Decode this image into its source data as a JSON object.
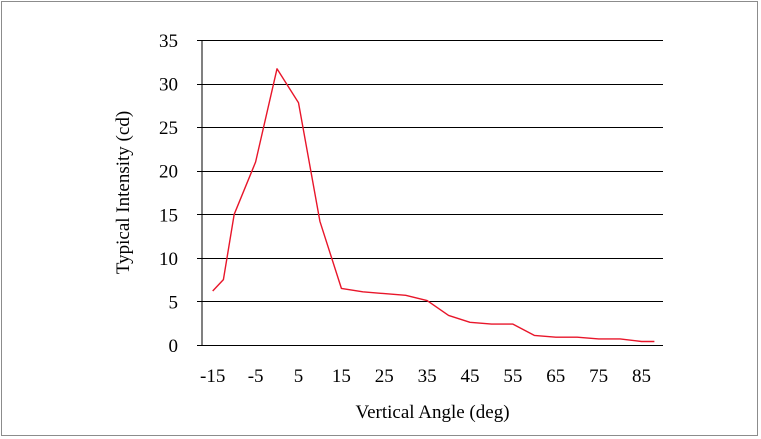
{
  "chart_data": {
    "type": "line",
    "title": "",
    "xlabel": "Vertical Angle (deg)",
    "ylabel": "Typical Intensity (cd)",
    "xlim": [
      -17.5,
      90
    ],
    "ylim": [
      0,
      35
    ],
    "x_ticks": [
      -15,
      -5,
      5,
      15,
      25,
      35,
      45,
      55,
      65,
      75,
      85
    ],
    "x_tick_labels": [
      "-15",
      "-5",
      "5",
      "15",
      "25",
      "35",
      "45",
      "55",
      "65",
      "75",
      "85"
    ],
    "y_ticks": [
      0,
      5,
      10,
      15,
      20,
      25,
      30,
      35
    ],
    "y_tick_labels": [
      "0",
      "5",
      "10",
      "15",
      "20",
      "25",
      "30",
      "35"
    ],
    "grid": "horizontal",
    "legend": "none",
    "series": [
      {
        "color": "#e8162a",
        "x": [
          -15,
          -12.5,
          -10,
          -5,
          0,
          5,
          10,
          15,
          20,
          25,
          30,
          35,
          40,
          45,
          50,
          55,
          60,
          65,
          70,
          75,
          80,
          85,
          88
        ],
        "y": [
          6.2,
          7.5,
          15,
          21,
          31.7,
          27.8,
          14.2,
          6.5,
          6.1,
          5.9,
          5.7,
          5.1,
          3.4,
          2.6,
          2.4,
          2.4,
          1.1,
          0.9,
          0.9,
          0.7,
          0.7,
          0.4,
          0.4
        ]
      }
    ]
  }
}
